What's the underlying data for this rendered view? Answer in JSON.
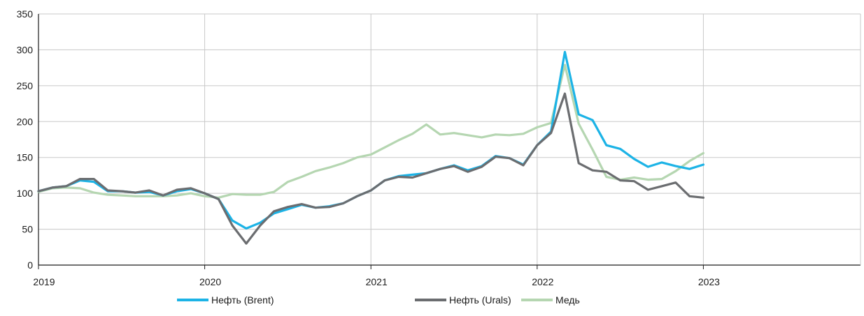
{
  "chart_data": {
    "type": "line",
    "title": "",
    "xlabel": "",
    "ylabel": "",
    "ylim": [
      0,
      350
    ],
    "yticks": [
      0,
      50,
      100,
      150,
      200,
      250,
      300,
      350
    ],
    "y_tick_labels": [
      "0",
      "50",
      "100",
      "150",
      "200",
      "250",
      "300",
      "350"
    ],
    "x_tick_labels": [
      "2019",
      "2020",
      "2021",
      "2022",
      "2023"
    ],
    "x_tick_months": [
      0,
      12,
      24,
      36,
      48
    ],
    "x_range_months": [
      0,
      59
    ],
    "grid": true,
    "legend_position": "bottom",
    "series": [
      {
        "name": "Нефть (Brent)",
        "color": "#1cb3e6",
        "values": [
          103,
          108,
          110,
          118,
          116,
          103,
          103,
          101,
          102,
          97,
          103,
          106,
          100,
          92,
          62,
          51,
          59,
          72,
          78,
          84,
          80,
          82,
          86,
          96,
          104,
          118,
          124,
          126,
          128,
          134,
          139,
          132,
          138,
          152,
          149,
          140,
          167,
          186,
          297,
          210,
          202,
          167,
          162,
          148,
          137,
          143,
          138,
          134,
          140
        ]
      },
      {
        "name": "Нефть (Urals)",
        "color": "#6b6d70",
        "values": [
          103,
          108,
          110,
          120,
          120,
          104,
          103,
          101,
          104,
          97,
          105,
          107,
          100,
          92,
          55,
          30,
          55,
          75,
          81,
          85,
          80,
          81,
          86,
          96,
          104,
          118,
          123,
          122,
          128,
          134,
          138,
          130,
          137,
          151,
          149,
          139,
          167,
          184,
          239,
          142,
          132,
          130,
          118,
          117,
          105,
          110,
          115,
          96,
          94
        ]
      },
      {
        "name": "Медь",
        "color": "#b5d6b1",
        "values": [
          102,
          107,
          108,
          107,
          101,
          98,
          97,
          96,
          96,
          96,
          97,
          100,
          96,
          94,
          99,
          98,
          98,
          102,
          116,
          123,
          131,
          136,
          142,
          150,
          154,
          164,
          174,
          183,
          196,
          182,
          184,
          181,
          178,
          182,
          181,
          183,
          192,
          198,
          279,
          197,
          161,
          123,
          119,
          122,
          119,
          120,
          131,
          145,
          156
        ]
      }
    ]
  }
}
